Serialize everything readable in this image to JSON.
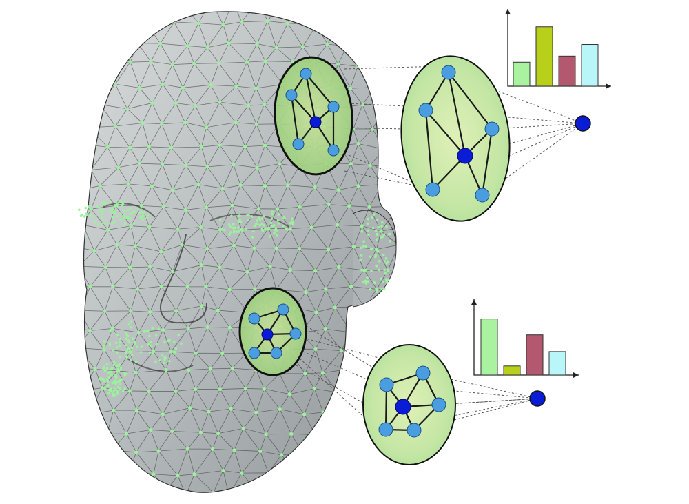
{
  "diagram": {
    "colors": {
      "background": "#ffffff",
      "mesh_fill": "#b9bfc0",
      "mesh_vertex": "#9cf29c",
      "patch_fill": "#c7e6a0",
      "node_fill": "#4a9ee0",
      "center_node_fill": "#0a1cd6",
      "edge": "#1a1a1a"
    },
    "histograms": [
      {
        "name": "upper-descriptor",
        "bars": [
          {
            "value": 0.31,
            "color": "#a8f2a0"
          },
          {
            "value": 0.77,
            "color": "#b8d01a"
          },
          {
            "value": 0.39,
            "color": "#b3586e"
          },
          {
            "value": 0.54,
            "color": "#b8f6fa"
          }
        ]
      },
      {
        "name": "lower-descriptor",
        "bars": [
          {
            "value": 0.74,
            "color": "#a8f2a0"
          },
          {
            "value": 0.12,
            "color": "#b8d01a"
          },
          {
            "value": 0.53,
            "color": "#b3586e"
          },
          {
            "value": 0.31,
            "color": "#b8f6fa"
          }
        ]
      }
    ],
    "icons": [
      "face-mesh-icon",
      "graph-patch-icon",
      "histogram-icon"
    ]
  }
}
